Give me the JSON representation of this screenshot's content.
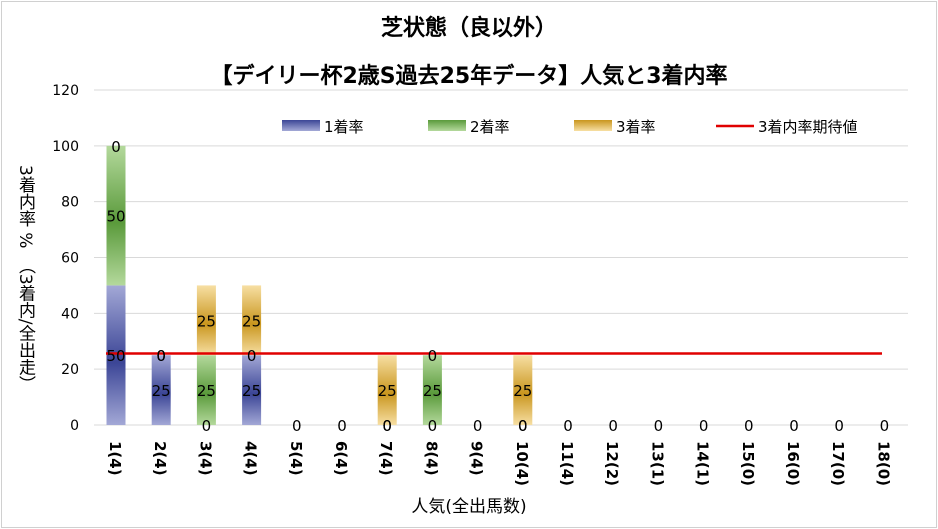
{
  "chart_data": {
    "type": "bar",
    "title": "芝状態（良以外）",
    "subtitle": "【デイリー杯2歳S過去25年データ】人気と3着内率",
    "xlabel": "人気(全出馬数)",
    "ylabel": "3着内率 %　（3着内/全出走）",
    "ylim": [
      0,
      120
    ],
    "yticks": [
      0,
      20,
      40,
      60,
      80,
      100,
      120
    ],
    "grid": true,
    "legend_position": "top",
    "categories": [
      "1(4)",
      "2(4)",
      "3(4)",
      "4(4)",
      "5(4)",
      "6(4)",
      "7(4)",
      "8(4)",
      "9(4)",
      "10(4)",
      "11(4)",
      "12(2)",
      "13(1)",
      "14(1)",
      "15(0)",
      "16(0)",
      "17(0)",
      "18(0)"
    ],
    "series": [
      {
        "name": "1着率",
        "values": [
          50,
          25,
          0,
          25,
          0,
          0,
          0,
          0,
          0,
          0,
          0,
          0,
          0,
          0,
          0,
          0,
          0,
          0
        ],
        "color": "#3b4596",
        "light": "#a3a8d6"
      },
      {
        "name": "2着率",
        "values": [
          50,
          0,
          25,
          0,
          0,
          0,
          0,
          25,
          0,
          0,
          0,
          0,
          0,
          0,
          0,
          0,
          0,
          0
        ],
        "color": "#5a9a3b",
        "light": "#b4d99c"
      },
      {
        "name": "3着率",
        "values": [
          0,
          0,
          25,
          25,
          0,
          0,
          25,
          0,
          0,
          25,
          0,
          0,
          0,
          0,
          0,
          0,
          0,
          0
        ],
        "color": "#c9961e",
        "light": "#f7dfa3"
      }
    ],
    "expected_line": {
      "name": "3着内率期待値",
      "value": 25.6,
      "color": "#e00000"
    },
    "data_labels": [
      [
        "50",
        "50",
        "0"
      ],
      [
        "25",
        "0",
        "0"
      ],
      [
        "0",
        "25",
        "25"
      ],
      [
        "25",
        "0",
        "25"
      ],
      [
        "0",
        "0",
        "0"
      ],
      [
        "0",
        "0",
        "0"
      ],
      [
        "0",
        "0",
        "25"
      ],
      [
        "0",
        "25",
        "0"
      ],
      [
        "0",
        "0",
        "0"
      ],
      [
        "0",
        "0",
        "25"
      ],
      [
        "0",
        "0",
        "0"
      ],
      [
        "0",
        "0",
        "0"
      ],
      [
        "0",
        "0",
        "0"
      ],
      [
        "0",
        "0",
        "0"
      ],
      [
        "0",
        "0",
        "0"
      ],
      [
        "0",
        "0",
        "0"
      ],
      [
        "0",
        "0",
        "0"
      ],
      [
        "0",
        "0",
        "0"
      ]
    ]
  }
}
